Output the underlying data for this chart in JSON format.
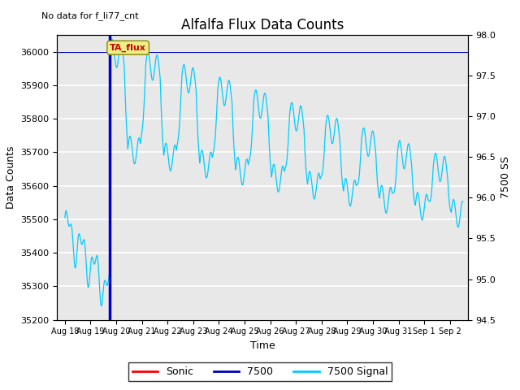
{
  "title": "Alfalfa Flux Data Counts",
  "subtitle": "No data for f_li77_cnt",
  "xlabel": "Time",
  "ylabel_left": "Data Counts",
  "ylabel_right": "7500 SS",
  "left_ylim": [
    35200,
    36050
  ],
  "right_ylim": [
    94.5,
    98.0
  ],
  "bg_color": "#e8e8e8",
  "blue_vline_x": 1.75,
  "annotation_box_text": "TA_flux",
  "legend_entries": [
    "Sonic",
    "7500",
    "7500 Signal"
  ],
  "legend_colors": [
    "#ff0000",
    "#0000bb",
    "#00ccff"
  ],
  "yticks_left": [
    35200,
    35300,
    35400,
    35500,
    35600,
    35700,
    35800,
    35900,
    36000
  ],
  "yticks_right": [
    94.5,
    95.0,
    95.5,
    96.0,
    96.5,
    97.0,
    97.5,
    98.0
  ],
  "xtick_labels": [
    "Aug 18",
    "Aug 19",
    "Aug 20",
    "Aug 21",
    "Aug 22",
    "Aug 23",
    "Aug 24",
    "Aug 25",
    "Aug 26",
    "Aug 27",
    "Aug 28",
    "Aug 29",
    "Aug 30",
    "Aug 31",
    "Sep 1",
    "Sep 2"
  ]
}
